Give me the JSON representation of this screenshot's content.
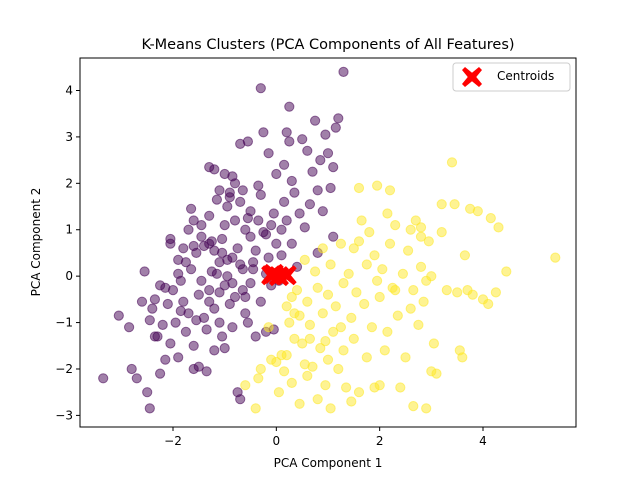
{
  "chart_data": {
    "type": "scatter",
    "title": "K-Means Clusters (PCA Components of All Features)",
    "xlabel": "PCA Component 1",
    "ylabel": "PCA Component 2",
    "xlim": [
      -3.8,
      5.8
    ],
    "ylim": [
      -3.25,
      4.7
    ],
    "xticks": [
      -2,
      0,
      2,
      4
    ],
    "yticks": [
      -3,
      -2,
      -1,
      0,
      1,
      2,
      3,
      4
    ],
    "xtick_labels": [
      "−2",
      "0",
      "2",
      "4"
    ],
    "ytick_labels": [
      "−3",
      "−2",
      "−1",
      "0",
      "1",
      "2",
      "3",
      "4"
    ],
    "grid": false,
    "legend": {
      "placement": "top-right",
      "entries": [
        "Centroids"
      ]
    },
    "colors": {
      "cluster_0": "#440154",
      "cluster_1": "#fde725",
      "centroids": "#ff0000"
    },
    "series": [
      {
        "cluster": 0,
        "points": [
          [
            -3.35,
            -2.2
          ],
          [
            -3.05,
            -0.85
          ],
          [
            -2.85,
            -1.1
          ],
          [
            -2.8,
            -2.0
          ],
          [
            -2.7,
            -2.2
          ],
          [
            -2.6,
            -0.55
          ],
          [
            -2.55,
            0.1
          ],
          [
            -2.5,
            -2.5
          ],
          [
            -2.45,
            -2.85
          ],
          [
            -2.45,
            -0.95
          ],
          [
            -2.4,
            -0.7
          ],
          [
            -2.35,
            -0.5
          ],
          [
            -2.3,
            -1.3
          ],
          [
            -2.25,
            -2.1
          ],
          [
            -2.25,
            -0.2
          ],
          [
            -2.2,
            -1.05
          ],
          [
            -2.15,
            -1.8
          ],
          [
            -2.1,
            -0.6
          ],
          [
            -2.05,
            0.8
          ],
          [
            -2.0,
            -0.3
          ],
          [
            -2.05,
            -1.45
          ],
          [
            -1.95,
            -1.0
          ],
          [
            -1.9,
            0.35
          ],
          [
            -1.9,
            -1.75
          ],
          [
            -1.85,
            -0.1
          ],
          [
            -1.8,
            -0.55
          ],
          [
            -1.8,
            0.6
          ],
          [
            -1.75,
            -1.2
          ],
          [
            -1.7,
            1.0
          ],
          [
            -1.7,
            -0.8
          ],
          [
            -1.65,
            0.15
          ],
          [
            -1.6,
            -1.5
          ],
          [
            -1.6,
            -2.0
          ],
          [
            -1.55,
            0.5
          ],
          [
            -1.5,
            -0.4
          ],
          [
            -1.5,
            -1.95
          ],
          [
            -1.45,
            0.85
          ],
          [
            -1.45,
            -0.1
          ],
          [
            -1.4,
            0.65
          ],
          [
            -1.4,
            -0.9
          ],
          [
            -1.35,
            -2.05
          ],
          [
            -1.3,
            0.7
          ],
          [
            -1.3,
            -0.3
          ],
          [
            -1.3,
            1.3
          ],
          [
            -1.25,
            0.1
          ],
          [
            -1.2,
            -1.6
          ],
          [
            -1.2,
            0.55
          ],
          [
            -1.2,
            -0.7
          ],
          [
            -1.15,
            1.65
          ],
          [
            -1.1,
            -1.0
          ],
          [
            -1.1,
            0.3
          ],
          [
            -1.05,
            0.8
          ],
          [
            -1.05,
            -1.3
          ],
          [
            -1.0,
            1.1
          ],
          [
            -1.0,
            -0.2
          ],
          [
            -1.0,
            2.2
          ],
          [
            -0.95,
            0.0
          ],
          [
            -0.95,
            1.5
          ],
          [
            -0.9,
            -0.6
          ],
          [
            -0.9,
            1.8
          ],
          [
            -0.85,
            -1.1
          ],
          [
            -0.85,
            0.4
          ],
          [
            -0.8,
            2.0
          ],
          [
            -0.8,
            -0.45
          ],
          [
            -0.8,
            1.2
          ],
          [
            -0.75,
            -2.5
          ],
          [
            -0.75,
            0.6
          ],
          [
            -0.7,
            -2.65
          ],
          [
            -0.7,
            1.6
          ],
          [
            -0.7,
            2.85
          ],
          [
            -0.65,
            0.15
          ],
          [
            -0.65,
            -0.3
          ],
          [
            -0.6,
            1.0
          ],
          [
            -0.6,
            -0.8
          ],
          [
            -0.55,
            2.9
          ],
          [
            -0.5,
            0.85
          ],
          [
            -0.5,
            -0.15
          ],
          [
            -0.5,
            1.4
          ],
          [
            -0.45,
            0.3
          ],
          [
            -0.4,
            -1.3
          ],
          [
            -0.4,
            0.55
          ],
          [
            -0.35,
            1.95
          ],
          [
            -0.3,
            4.05
          ],
          [
            -0.3,
            -0.55
          ],
          [
            -0.3,
            1.75
          ],
          [
            -0.25,
            3.1
          ],
          [
            -0.2,
            0.9
          ],
          [
            -0.2,
            0.05
          ],
          [
            -0.15,
            2.65
          ],
          [
            -0.1,
            1.1
          ],
          [
            -0.1,
            -0.2
          ],
          [
            -0.05,
            1.35
          ],
          [
            0.0,
            0.7
          ],
          [
            0.0,
            2.2
          ],
          [
            0.05,
            -0.1
          ],
          [
            0.1,
            0.45
          ],
          [
            0.15,
            2.4
          ],
          [
            0.15,
            1.6
          ],
          [
            0.2,
            3.1
          ],
          [
            0.2,
            1.2
          ],
          [
            0.25,
            3.65
          ],
          [
            0.25,
            2.9
          ],
          [
            0.3,
            2.05
          ],
          [
            0.3,
            0.7
          ],
          [
            0.35,
            1.8
          ],
          [
            0.4,
            0.2
          ],
          [
            0.45,
            1.35
          ],
          [
            0.5,
            2.95
          ],
          [
            0.55,
            1.05
          ],
          [
            0.6,
            2.7
          ],
          [
            0.65,
            1.55
          ],
          [
            0.7,
            2.25
          ],
          [
            0.75,
            3.35
          ],
          [
            0.8,
            1.85
          ],
          [
            0.85,
            2.5
          ],
          [
            0.9,
            1.4
          ],
          [
            0.95,
            3.05
          ],
          [
            1.0,
            2.65
          ],
          [
            1.05,
            1.9
          ],
          [
            1.1,
            2.35
          ],
          [
            1.15,
            3.2
          ],
          [
            1.2,
            3.4
          ],
          [
            1.3,
            4.4
          ],
          [
            1.1,
            0.85
          ],
          [
            0.8,
            0.5
          ],
          [
            -1.3,
            2.35
          ],
          [
            -1.2,
            2.3
          ],
          [
            -1.1,
            1.85
          ],
          [
            -0.85,
            2.15
          ],
          [
            -2.05,
            0.7
          ],
          [
            -1.6,
            1.2
          ],
          [
            -1.9,
            0.05
          ],
          [
            -1.45,
            1.1
          ],
          [
            -2.15,
            -0.25
          ],
          [
            -1.35,
            -1.15
          ],
          [
            -1.0,
            -1.55
          ],
          [
            -0.55,
            -1.0
          ],
          [
            -0.2,
            -1.2
          ],
          [
            -0.05,
            -1.15
          ],
          [
            -0.7,
            0.25
          ],
          [
            -1.05,
            0.5
          ],
          [
            -0.35,
            1.2
          ],
          [
            0.1,
            1.0
          ],
          [
            -0.25,
            0.95
          ],
          [
            -1.6,
            0.65
          ],
          [
            -1.85,
            -0.75
          ],
          [
            -1.25,
            0.75
          ],
          [
            -1.75,
            0.3
          ],
          [
            -0.9,
            1.7
          ],
          [
            -0.95,
            0.35
          ],
          [
            -1.3,
            -0.55
          ],
          [
            -1.1,
            -0.35
          ],
          [
            -0.85,
            -0.15
          ],
          [
            -0.6,
            -0.45
          ],
          [
            -0.45,
            0.15
          ],
          [
            -0.15,
            0.4
          ],
          [
            -1.55,
            -0.95
          ],
          [
            -1.15,
            0.05
          ],
          [
            -0.65,
            1.85
          ],
          [
            -1.65,
            1.45
          ],
          [
            -0.55,
            1.25
          ],
          [
            -2.35,
            -1.3
          ]
        ]
      },
      {
        "cluster": 1,
        "points": [
          [
            -0.6,
            -2.35
          ],
          [
            -0.4,
            -2.85
          ],
          [
            -0.35,
            -2.2
          ],
          [
            -0.3,
            -2.0
          ],
          [
            -0.15,
            -1.1
          ],
          [
            -0.1,
            -1.8
          ],
          [
            0.0,
            -1.85
          ],
          [
            0.05,
            -2.5
          ],
          [
            0.1,
            -1.7
          ],
          [
            0.15,
            -2.05
          ],
          [
            0.2,
            -0.65
          ],
          [
            0.2,
            -1.7
          ],
          [
            0.25,
            -1.0
          ],
          [
            0.3,
            -2.3
          ],
          [
            0.35,
            -1.35
          ],
          [
            0.4,
            -0.3
          ],
          [
            0.45,
            -0.85
          ],
          [
            0.45,
            -2.75
          ],
          [
            0.5,
            -1.45
          ],
          [
            0.55,
            0.35
          ],
          [
            0.6,
            -0.55
          ],
          [
            0.6,
            -2.15
          ],
          [
            0.65,
            -1.05
          ],
          [
            0.7,
            -1.95
          ],
          [
            0.75,
            0.1
          ],
          [
            0.8,
            -0.25
          ],
          [
            0.8,
            -2.65
          ],
          [
            0.85,
            -1.55
          ],
          [
            0.9,
            0.6
          ],
          [
            0.9,
            -0.8
          ],
          [
            0.95,
            -2.35
          ],
          [
            1.0,
            -0.4
          ],
          [
            1.0,
            -1.8
          ],
          [
            1.05,
            0.25
          ],
          [
            1.05,
            -2.85
          ],
          [
            1.1,
            -1.2
          ],
          [
            1.15,
            -0.65
          ],
          [
            1.2,
            -2.0
          ],
          [
            1.25,
            0.7
          ],
          [
            1.3,
            -0.15
          ],
          [
            1.3,
            -1.6
          ],
          [
            1.35,
            -2.4
          ],
          [
            1.4,
            0.05
          ],
          [
            1.45,
            -0.9
          ],
          [
            1.5,
            0.6
          ],
          [
            1.5,
            -1.35
          ],
          [
            1.55,
            -0.35
          ],
          [
            1.6,
            -2.5
          ],
          [
            1.6,
            1.9
          ],
          [
            1.65,
            1.2
          ],
          [
            1.7,
            -0.6
          ],
          [
            1.75,
            -1.75
          ],
          [
            1.8,
            0.95
          ],
          [
            1.85,
            -1.1
          ],
          [
            1.9,
            0.45
          ],
          [
            1.95,
            1.95
          ],
          [
            2.0,
            -0.45
          ],
          [
            2.0,
            -2.35
          ],
          [
            2.05,
            0.15
          ],
          [
            2.1,
            -1.6
          ],
          [
            2.15,
            1.35
          ],
          [
            2.2,
            0.7
          ],
          [
            2.25,
            -0.25
          ],
          [
            2.3,
            1.1
          ],
          [
            2.35,
            -0.85
          ],
          [
            2.4,
            -2.4
          ],
          [
            2.45,
            0.05
          ],
          [
            2.5,
            -1.75
          ],
          [
            2.55,
            0.55
          ],
          [
            2.6,
            1.0
          ],
          [
            2.65,
            -0.3
          ],
          [
            2.65,
            -2.8
          ],
          [
            2.7,
            1.2
          ],
          [
            2.75,
            -1.05
          ],
          [
            2.8,
            0.2
          ],
          [
            2.85,
            -0.55
          ],
          [
            2.9,
            -2.85
          ],
          [
            2.95,
            0.75
          ],
          [
            3.05,
            -1.45
          ],
          [
            3.1,
            -2.1
          ],
          [
            3.2,
            0.95
          ],
          [
            3.3,
            -0.3
          ],
          [
            3.4,
            2.45
          ],
          [
            3.45,
            1.55
          ],
          [
            3.5,
            -0.35
          ],
          [
            3.55,
            -1.6
          ],
          [
            3.6,
            -1.75
          ],
          [
            3.65,
            0.45
          ],
          [
            3.7,
            -0.3
          ],
          [
            3.75,
            1.45
          ],
          [
            3.8,
            -0.4
          ],
          [
            3.9,
            1.4
          ],
          [
            4.0,
            -0.5
          ],
          [
            4.1,
            -0.6
          ],
          [
            4.15,
            1.25
          ],
          [
            4.25,
            -0.35
          ],
          [
            4.3,
            1.05
          ],
          [
            4.45,
            0.1
          ],
          [
            5.4,
            0.4
          ],
          [
            2.2,
            1.85
          ],
          [
            2.3,
            -0.3
          ],
          [
            3.2,
            1.55
          ],
          [
            1.9,
            -2.4
          ],
          [
            2.8,
            0.85
          ],
          [
            2.9,
            -0.1
          ],
          [
            3.0,
            0.0
          ],
          [
            3.0,
            -2.05
          ],
          [
            2.6,
            -0.7
          ],
          [
            1.45,
            -2.7
          ],
          [
            1.25,
            -1.1
          ],
          [
            0.65,
            -1.35
          ],
          [
            0.35,
            -0.8
          ],
          [
            0.3,
            -0.45
          ],
          [
            1.75,
            0.25
          ],
          [
            2.15,
            -1.2
          ],
          [
            2.8,
            1.05
          ],
          [
            1.95,
            -0.1
          ],
          [
            1.6,
            0.75
          ],
          [
            0.95,
            -1.4
          ],
          [
            0.55,
            -1.9
          ]
        ]
      }
    ],
    "centroids": [
      [
        -0.1,
        0.02
      ],
      [
        0.05,
        0.0
      ],
      [
        0.2,
        0.02
      ],
      [
        -0.05,
        0.05
      ]
    ]
  }
}
